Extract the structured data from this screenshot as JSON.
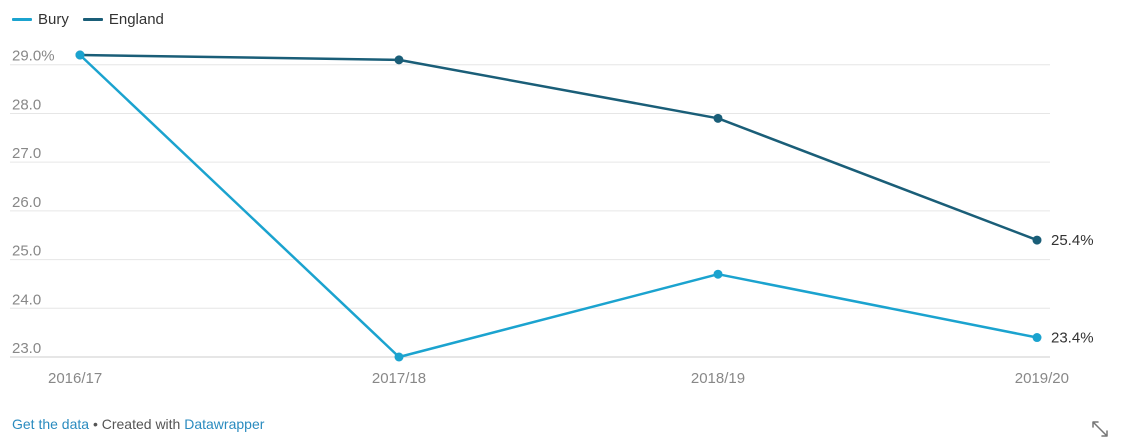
{
  "legend": [
    {
      "name": "Bury",
      "color": "#1ba3cf"
    },
    {
      "name": "England",
      "color": "#1a5e78"
    }
  ],
  "chart_data": {
    "type": "line",
    "categories": [
      "2016/17",
      "2017/18",
      "2018/19",
      "2019/20"
    ],
    "series": [
      {
        "name": "Bury",
        "color": "#1ba3cf",
        "values": [
          29.2,
          23.0,
          24.7,
          23.4
        ],
        "end_label": "23.4%"
      },
      {
        "name": "England",
        "color": "#1a5e78",
        "values": [
          29.2,
          29.1,
          27.9,
          25.4
        ],
        "end_label": "25.4%"
      }
    ],
    "yticks": [
      {
        "value": 29,
        "label": "29.0%"
      },
      {
        "value": 28,
        "label": "28.0"
      },
      {
        "value": 27,
        "label": "27.0"
      },
      {
        "value": 26,
        "label": "26.0"
      },
      {
        "value": 25,
        "label": "25.0"
      },
      {
        "value": 24,
        "label": "24.0"
      },
      {
        "value": 23,
        "label": "23.0"
      }
    ],
    "ylim": [
      23,
      29.2
    ],
    "grid": true,
    "legend_position": "top-left"
  },
  "footer": {
    "get_data": "Get the data",
    "separator": " • Created with ",
    "datawrapper": "Datawrapper"
  },
  "icons": {
    "expand": "expand-icon"
  }
}
